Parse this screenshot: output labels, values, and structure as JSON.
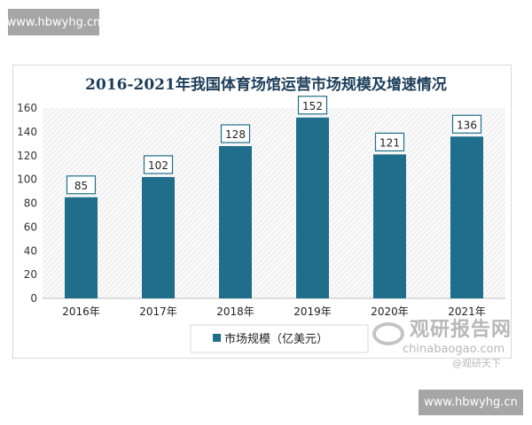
{
  "watermark_top": "www.hbwyhg.cn",
  "watermark_bottom": "www.hbwyhg.cn",
  "brand": {
    "name_cn": "观研报告网",
    "url": "chinabaogao.com",
    "sub": "@观研天下"
  },
  "colors": {
    "bar": "#1f6e8c",
    "title": "#1d3e5a"
  },
  "chart_data": {
    "type": "bar",
    "title": "2016-2021年我国体育场馆运营市场规模及增速情况",
    "categories": [
      "2016年",
      "2017年",
      "2018年",
      "2019年",
      "2020年",
      "2021年"
    ],
    "series": [
      {
        "name": "市场规模（亿美元）",
        "values": [
          85,
          102,
          128,
          152,
          121,
          136
        ]
      }
    ],
    "ylim": [
      0,
      160
    ],
    "yticks": [
      0,
      20,
      40,
      60,
      80,
      100,
      120,
      140,
      160
    ],
    "legend": "bottom",
    "grid": false
  }
}
